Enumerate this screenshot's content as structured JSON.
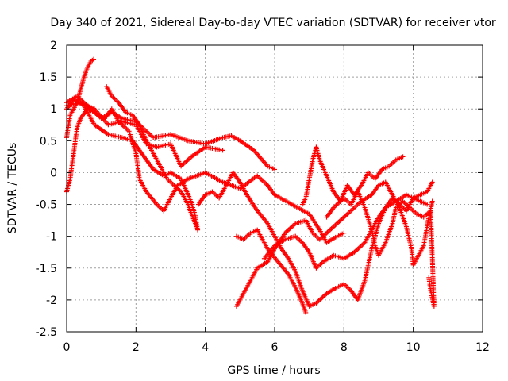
{
  "chart_data": {
    "type": "scatter",
    "title": "Day 340 of 2021, Sidereal Day-to-day VTEC variation (SDTVAR) for receiver vtor",
    "xlabel": "GPS time / hours",
    "ylabel": "SDTVAR / TECUs",
    "xlim": [
      0,
      12
    ],
    "ylim": [
      -2.5,
      2
    ],
    "xticks": [
      0,
      2,
      4,
      6,
      8,
      10,
      12
    ],
    "yticks": [
      2,
      1.5,
      1,
      0.5,
      0,
      -0.5,
      -1,
      -1.5,
      -2,
      -2.5
    ],
    "xtick_labels": [
      "0",
      "2",
      "4",
      "6",
      "8",
      "10",
      "12"
    ],
    "ytick_labels": [
      "2",
      "1.5",
      "1",
      "0.5",
      "0",
      "-0.5",
      "-1",
      "-1.5",
      "-2",
      "-2.5"
    ],
    "grid": true,
    "marker": "+",
    "color": "#ff0000",
    "series": [
      {
        "points": [
          [
            0.0,
            0.55
          ],
          [
            0.1,
            0.9
          ],
          [
            0.2,
            1.0
          ],
          [
            0.3,
            1.1
          ],
          [
            0.4,
            1.3
          ],
          [
            0.5,
            1.5
          ],
          [
            0.6,
            1.65
          ],
          [
            0.7,
            1.75
          ],
          [
            0.78,
            1.78
          ]
        ]
      },
      {
        "points": [
          [
            0.0,
            -0.3
          ],
          [
            0.1,
            -0.1
          ],
          [
            0.2,
            0.3
          ],
          [
            0.3,
            0.7
          ],
          [
            0.4,
            0.85
          ],
          [
            0.6,
            1.0
          ],
          [
            0.8,
            0.95
          ],
          [
            1.0,
            0.85
          ],
          [
            1.3,
            0.95
          ],
          [
            1.6,
            0.85
          ],
          [
            2.0,
            0.8
          ],
          [
            2.5,
            0.55
          ],
          [
            3.0,
            0.6
          ],
          [
            3.5,
            0.5
          ],
          [
            4.0,
            0.45
          ],
          [
            4.5,
            0.55
          ],
          [
            4.75,
            0.58
          ],
          [
            5.0,
            0.5
          ],
          [
            5.4,
            0.35
          ],
          [
            5.8,
            0.1
          ],
          [
            6.0,
            0.05
          ]
        ]
      },
      {
        "points": [
          [
            0.0,
            1.0
          ],
          [
            0.2,
            1.15
          ],
          [
            0.5,
            1.05
          ],
          [
            0.8,
            0.75
          ],
          [
            1.2,
            0.6
          ],
          [
            1.6,
            0.55
          ],
          [
            1.9,
            0.5
          ],
          [
            2.1,
            0.35
          ],
          [
            2.3,
            0.2
          ],
          [
            2.5,
            0.05
          ],
          [
            2.8,
            -0.05
          ],
          [
            3.0,
            0.0
          ],
          [
            3.3,
            -0.1
          ],
          [
            3.55,
            -0.4
          ],
          [
            3.7,
            -0.65
          ],
          [
            3.78,
            -0.9
          ]
        ]
      },
      {
        "points": [
          [
            0.0,
            1.1
          ],
          [
            0.3,
            1.2
          ],
          [
            0.6,
            1.05
          ],
          [
            0.9,
            0.9
          ],
          [
            1.1,
            0.85
          ],
          [
            1.3,
            1.0
          ],
          [
            1.5,
            0.8
          ],
          [
            1.8,
            0.65
          ],
          [
            2.0,
            0.3
          ],
          [
            2.1,
            -0.1
          ],
          [
            2.3,
            -0.3
          ],
          [
            2.6,
            -0.5
          ],
          [
            2.8,
            -0.6
          ],
          [
            3.0,
            -0.4
          ],
          [
            3.2,
            -0.2
          ],
          [
            3.5,
            -0.1
          ],
          [
            4.0,
            0.0
          ],
          [
            4.5,
            -0.15
          ],
          [
            5.0,
            -0.25
          ],
          [
            5.5,
            -0.05
          ],
          [
            5.8,
            -0.2
          ],
          [
            6.0,
            -0.35
          ],
          [
            6.5,
            -0.5
          ],
          [
            7.0,
            -0.65
          ],
          [
            7.3,
            -0.9
          ],
          [
            7.5,
            -1.1
          ],
          [
            7.8,
            -1.0
          ],
          [
            8.0,
            -0.95
          ]
        ]
      },
      {
        "points": [
          [
            0.0,
            1.05
          ],
          [
            0.4,
            1.1
          ],
          [
            0.8,
            1.0
          ],
          [
            1.2,
            0.75
          ],
          [
            1.6,
            0.8
          ],
          [
            2.0,
            0.75
          ],
          [
            2.3,
            0.45
          ],
          [
            2.6,
            0.4
          ],
          [
            3.0,
            0.45
          ],
          [
            3.3,
            0.1
          ],
          [
            3.6,
            0.25
          ],
          [
            4.0,
            0.4
          ],
          [
            4.5,
            0.35
          ]
        ]
      },
      {
        "points": [
          [
            1.15,
            1.35
          ],
          [
            1.3,
            1.2
          ],
          [
            1.5,
            1.1
          ],
          [
            1.7,
            0.95
          ],
          [
            1.9,
            0.9
          ],
          [
            2.1,
            0.75
          ],
          [
            2.3,
            0.5
          ],
          [
            2.5,
            0.3
          ],
          [
            2.7,
            0.1
          ],
          [
            2.9,
            -0.1
          ],
          [
            3.1,
            -0.2
          ],
          [
            3.3,
            -0.3
          ],
          [
            3.5,
            -0.5
          ],
          [
            3.6,
            -0.65
          ],
          [
            3.75,
            -0.85
          ]
        ]
      },
      {
        "points": [
          [
            3.8,
            -0.5
          ],
          [
            4.0,
            -0.35
          ],
          [
            4.2,
            -0.3
          ],
          [
            4.4,
            -0.4
          ],
          [
            4.6,
            -0.2
          ],
          [
            4.8,
            0.0
          ],
          [
            5.0,
            -0.15
          ],
          [
            5.2,
            -0.35
          ],
          [
            5.5,
            -0.6
          ],
          [
            5.8,
            -0.8
          ],
          [
            6.0,
            -1.0
          ],
          [
            6.2,
            -1.2
          ],
          [
            6.4,
            -1.35
          ],
          [
            6.6,
            -1.55
          ],
          [
            6.8,
            -1.85
          ],
          [
            7.0,
            -2.1
          ],
          [
            7.2,
            -2.05
          ],
          [
            7.5,
            -1.9
          ],
          [
            7.8,
            -1.8
          ],
          [
            8.0,
            -1.75
          ],
          [
            8.2,
            -1.85
          ],
          [
            8.4,
            -2.0
          ],
          [
            8.6,
            -1.7
          ],
          [
            8.8,
            -1.2
          ],
          [
            9.0,
            -0.8
          ],
          [
            9.2,
            -0.55
          ],
          [
            9.4,
            -0.4
          ],
          [
            9.6,
            -0.5
          ],
          [
            9.8,
            -0.6
          ],
          [
            10.0,
            -0.4
          ],
          [
            10.2,
            -0.35
          ],
          [
            10.4,
            -0.3
          ],
          [
            10.55,
            -0.15
          ]
        ]
      },
      {
        "points": [
          [
            4.9,
            -1.0
          ],
          [
            5.1,
            -1.05
          ],
          [
            5.3,
            -0.95
          ],
          [
            5.5,
            -0.9
          ],
          [
            5.8,
            -1.2
          ],
          [
            6.1,
            -1.4
          ],
          [
            6.4,
            -1.6
          ],
          [
            6.6,
            -1.8
          ],
          [
            6.8,
            -2.05
          ],
          [
            6.9,
            -2.2
          ]
        ]
      },
      {
        "points": [
          [
            4.9,
            -2.1
          ],
          [
            5.1,
            -1.9
          ],
          [
            5.3,
            -1.7
          ],
          [
            5.5,
            -1.5
          ],
          [
            5.8,
            -1.4
          ],
          [
            6.0,
            -1.2
          ],
          [
            6.3,
            -0.95
          ],
          [
            6.6,
            -0.8
          ],
          [
            6.9,
            -0.75
          ],
          [
            7.1,
            -0.95
          ],
          [
            7.3,
            -1.05
          ],
          [
            7.6,
            -0.9
          ],
          [
            7.9,
            -0.75
          ],
          [
            8.2,
            -0.6
          ],
          [
            8.5,
            -0.45
          ],
          [
            8.8,
            -0.35
          ],
          [
            9.0,
            -0.2
          ],
          [
            9.2,
            -0.15
          ],
          [
            9.4,
            -0.35
          ],
          [
            9.6,
            -0.55
          ],
          [
            9.8,
            -0.85
          ],
          [
            9.95,
            -1.2
          ],
          [
            10.0,
            -1.45
          ],
          [
            10.1,
            -1.35
          ],
          [
            10.3,
            -1.15
          ],
          [
            10.45,
            -0.7
          ],
          [
            10.55,
            -0.45
          ]
        ]
      },
      {
        "points": [
          [
            5.7,
            -1.35
          ],
          [
            6.0,
            -1.15
          ],
          [
            6.3,
            -1.05
          ],
          [
            6.6,
            -1.0
          ],
          [
            6.8,
            -1.1
          ],
          [
            7.0,
            -1.25
          ],
          [
            7.2,
            -1.5
          ],
          [
            7.4,
            -1.4
          ],
          [
            7.7,
            -1.3
          ],
          [
            8.0,
            -1.35
          ],
          [
            8.3,
            -1.25
          ],
          [
            8.6,
            -1.1
          ],
          [
            8.8,
            -0.9
          ],
          [
            9.0,
            -0.7
          ],
          [
            9.2,
            -0.55
          ],
          [
            9.5,
            -0.45
          ],
          [
            9.8,
            -0.35
          ],
          [
            10.0,
            -0.4
          ],
          [
            10.2,
            -0.45
          ],
          [
            10.4,
            -0.5
          ]
        ]
      },
      {
        "points": [
          [
            6.8,
            -0.5
          ],
          [
            6.9,
            -0.4
          ],
          [
            7.0,
            -0.1
          ],
          [
            7.1,
            0.2
          ],
          [
            7.2,
            0.4
          ],
          [
            7.3,
            0.2
          ],
          [
            7.5,
            -0.05
          ],
          [
            7.7,
            -0.3
          ],
          [
            7.9,
            -0.45
          ],
          [
            8.1,
            -0.2
          ],
          [
            8.3,
            -0.35
          ],
          [
            8.5,
            -0.2
          ],
          [
            8.7,
            0.0
          ],
          [
            8.9,
            -0.1
          ],
          [
            9.1,
            0.05
          ],
          [
            9.3,
            0.1
          ],
          [
            9.5,
            0.2
          ],
          [
            9.7,
            0.25
          ]
        ]
      },
      {
        "points": [
          [
            7.5,
            -0.7
          ],
          [
            7.7,
            -0.55
          ],
          [
            8.0,
            -0.4
          ],
          [
            8.2,
            -0.5
          ],
          [
            8.4,
            -0.3
          ],
          [
            8.6,
            -0.55
          ],
          [
            8.8,
            -0.9
          ],
          [
            8.9,
            -1.15
          ],
          [
            9.0,
            -1.3
          ],
          [
            9.2,
            -1.1
          ],
          [
            9.4,
            -0.8
          ],
          [
            9.5,
            -0.55
          ],
          [
            9.7,
            -0.45
          ],
          [
            9.9,
            -0.55
          ],
          [
            10.1,
            -0.65
          ],
          [
            10.3,
            -0.7
          ],
          [
            10.5,
            -0.6
          ],
          [
            10.6,
            -2.1
          ],
          [
            10.5,
            -1.85
          ],
          [
            10.45,
            -1.65
          ]
        ]
      }
    ]
  }
}
